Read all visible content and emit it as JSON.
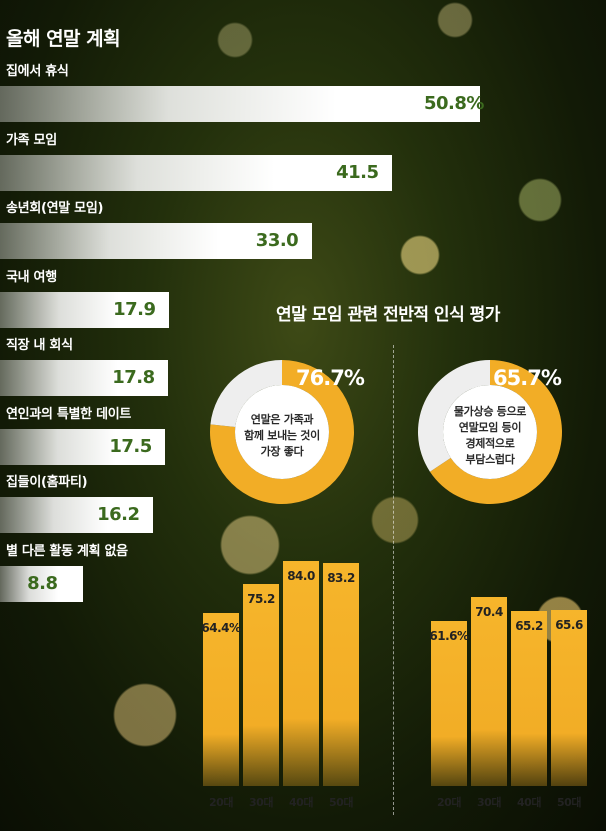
{
  "title": "올해 연말 계획",
  "section_title": "연말 모임 관련 전반적 인식 평가",
  "colors": {
    "bar_text": "#3b6a1e",
    "accent": "#f2ad26",
    "donut_rest": "#eeeeee"
  },
  "chart_data": [
    {
      "type": "bar",
      "orientation": "horizontal",
      "title": "올해 연말 계획",
      "categories": [
        "집에서 휴식",
        "가족 모임",
        "송년회(연말 모임)",
        "국내 여행",
        "직장 내 회식",
        "연인과의 특별한 데이트",
        "집들이(홈파티)",
        "별 다른 활동 계획 없음"
      ],
      "values": [
        50.8,
        41.5,
        33.0,
        17.9,
        17.8,
        17.5,
        16.2,
        8.8
      ],
      "value_labels": [
        "50.8%",
        "41.5",
        "33.0",
        "17.9",
        "17.8",
        "17.5",
        "16.2",
        "8.8"
      ],
      "xlim": [
        0,
        60
      ]
    },
    {
      "type": "pie",
      "donut": true,
      "label": "연말은 가족과 함께 보내는 것이 가장 좋다",
      "label_lines": [
        "연말은 가족과",
        "함께 보내는 것이",
        "가장 좋다"
      ],
      "value": 76.7,
      "value_label": "76.7%"
    },
    {
      "type": "pie",
      "donut": true,
      "label": "물가상승 등으로 연말모임 등이 경제적으로 부담스럽다",
      "label_lines": [
        "물가상승 등으로",
        "연말모임 등이",
        "경제적으로",
        "부담스럽다"
      ],
      "value": 65.7,
      "value_label": "65.7%"
    },
    {
      "type": "bar",
      "categories": [
        "20대",
        "30대",
        "40대",
        "50대"
      ],
      "values": [
        64.4,
        75.2,
        84.0,
        83.2
      ],
      "value_labels": [
        "64.4%",
        "75.2",
        "84.0",
        "83.2"
      ]
    },
    {
      "type": "bar",
      "categories": [
        "20대",
        "30대",
        "40대",
        "50대"
      ],
      "values": [
        61.6,
        70.4,
        65.2,
        65.6
      ],
      "value_labels": [
        "61.6%",
        "70.4",
        "65.2",
        "65.6"
      ]
    }
  ]
}
